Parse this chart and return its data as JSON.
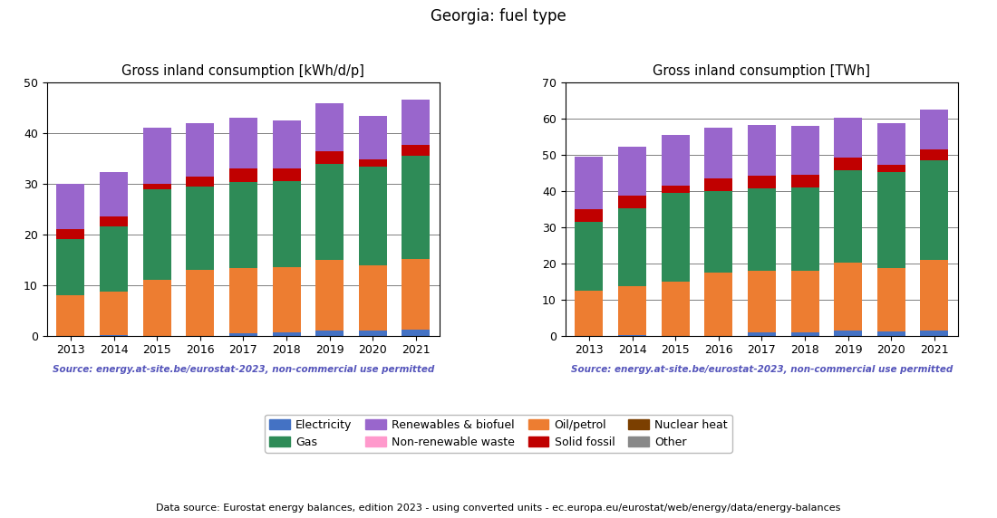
{
  "title": "Georgia: fuel type",
  "years": [
    2013,
    2014,
    2015,
    2016,
    2017,
    2018,
    2019,
    2020,
    2021
  ],
  "left_title": "Gross inland consumption [kWh/d/p]",
  "right_title": "Gross inland consumption [TWh]",
  "source_text": "Source: energy.at-site.be/eurostat-2023, non-commercial use permitted",
  "bottom_text": "Data source: Eurostat energy balances, edition 2023 - using converted units - ec.europa.eu/eurostat/web/energy/data/energy-balances",
  "fuel_types": [
    "Electricity",
    "Oil/petrol",
    "Gas",
    "Solid fossil",
    "Nuclear heat",
    "Renewables & biofuel",
    "Non-renewable waste",
    "Other"
  ],
  "colors": {
    "Electricity": "#4472c4",
    "Oil/petrol": "#ed7d31",
    "Gas": "#2e8b57",
    "Solid fossil": "#c00000",
    "Nuclear heat": "#7b3f00",
    "Renewables & biofuel": "#9966cc",
    "Non-renewable waste": "#ff99cc",
    "Other": "#888888"
  },
  "kwh_data": {
    "Electricity": [
      0.0,
      0.1,
      0.0,
      0.0,
      0.5,
      0.7,
      0.9,
      0.9,
      1.1
    ],
    "Oil/petrol": [
      8.0,
      8.5,
      11.0,
      13.0,
      12.8,
      12.8,
      14.0,
      13.0,
      14.0
    ],
    "Gas": [
      11.0,
      13.0,
      18.0,
      16.5,
      17.0,
      17.0,
      19.0,
      19.5,
      20.5
    ],
    "Solid fossil": [
      2.0,
      2.0,
      1.0,
      2.0,
      2.7,
      2.5,
      2.5,
      1.5,
      2.0
    ],
    "Nuclear heat": [
      0.0,
      0.0,
      0.0,
      0.0,
      0.0,
      0.0,
      0.0,
      0.0,
      0.0
    ],
    "Renewables & biofuel": [
      9.0,
      8.7,
      11.0,
      10.5,
      10.0,
      9.5,
      9.5,
      8.5,
      9.0
    ],
    "Non-renewable waste": [
      0.0,
      0.0,
      0.0,
      0.0,
      0.0,
      0.0,
      0.0,
      0.0,
      0.0
    ],
    "Other": [
      0.0,
      0.0,
      0.0,
      0.0,
      0.0,
      0.0,
      0.0,
      0.0,
      0.0
    ]
  },
  "twh_data": {
    "Electricity": [
      0.0,
      0.1,
      0.0,
      0.0,
      0.8,
      1.0,
      1.3,
      1.2,
      1.5
    ],
    "Oil/petrol": [
      12.5,
      13.5,
      15.0,
      17.5,
      17.0,
      17.0,
      19.0,
      17.5,
      19.5
    ],
    "Gas": [
      19.0,
      21.5,
      24.5,
      22.5,
      23.0,
      23.0,
      25.5,
      26.5,
      27.5
    ],
    "Solid fossil": [
      3.5,
      3.5,
      2.0,
      3.5,
      3.5,
      3.5,
      3.5,
      2.0,
      3.0
    ],
    "Nuclear heat": [
      0.0,
      0.0,
      0.0,
      0.0,
      0.0,
      0.0,
      0.0,
      0.0,
      0.0
    ],
    "Renewables & biofuel": [
      14.5,
      13.7,
      14.0,
      14.0,
      14.0,
      13.5,
      11.0,
      11.5,
      11.0
    ],
    "Non-renewable waste": [
      0.0,
      0.0,
      0.0,
      0.0,
      0.0,
      0.0,
      0.0,
      0.0,
      0.0
    ],
    "Other": [
      0.0,
      0.0,
      0.0,
      0.0,
      0.0,
      0.0,
      0.0,
      0.0,
      0.0
    ]
  },
  "kwh_ylim": [
    0,
    50
  ],
  "kwh_yticks": [
    0,
    10,
    20,
    30,
    40,
    50
  ],
  "twh_ylim": [
    0,
    70
  ],
  "twh_yticks": [
    0,
    10,
    20,
    30,
    40,
    50,
    60,
    70
  ],
  "source_color": "#5555bb",
  "bar_width": 0.65,
  "legend_order": [
    "Electricity",
    "Gas",
    "Renewables & biofuel",
    "Non-renewable waste",
    "Oil/petrol",
    "Solid fossil",
    "Nuclear heat",
    "Other"
  ]
}
